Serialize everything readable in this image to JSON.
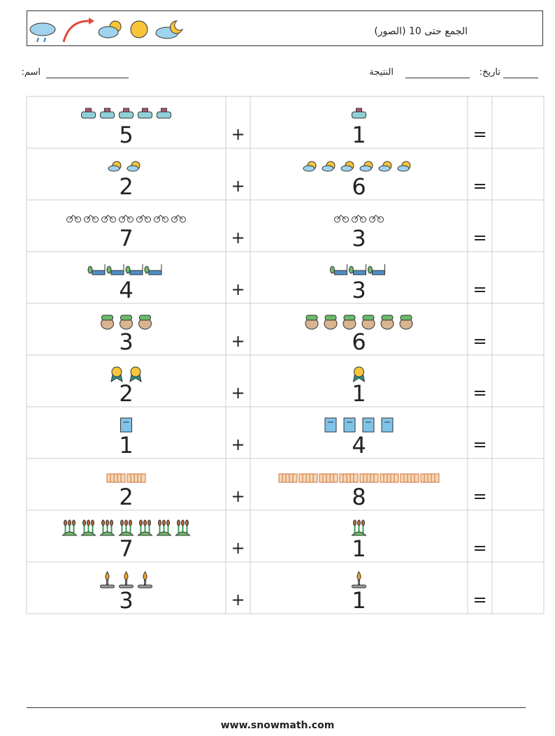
{
  "header": {
    "title": "الجمع حتى 10 (الصور)",
    "name_label": "اسم:",
    "date_label": "تاريخ:",
    "score_label": "النتيجة"
  },
  "plus": "+",
  "equals": "=",
  "rows": [
    {
      "left": 5,
      "right": 1
    },
    {
      "left": 2,
      "right": 6
    },
    {
      "left": 7,
      "right": 3
    },
    {
      "left": 4,
      "right": 3
    },
    {
      "left": 3,
      "right": 6
    },
    {
      "left": 2,
      "right": 1
    },
    {
      "left": 1,
      "right": 4
    },
    {
      "left": 2,
      "right": 8
    },
    {
      "left": 7,
      "right": 1
    },
    {
      "left": 3,
      "right": 1
    }
  ],
  "footer": "www.snowmath.com"
}
